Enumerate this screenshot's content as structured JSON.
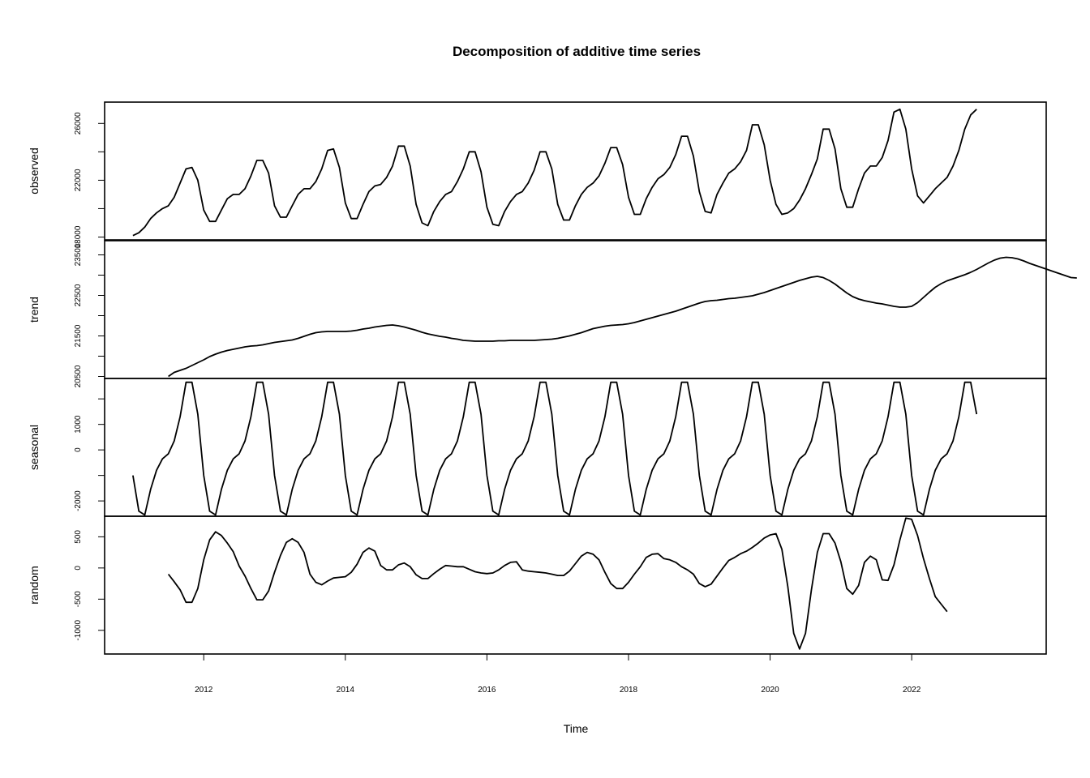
{
  "chart_data": {
    "type": "line",
    "title": "Decomposition of additive time series",
    "xlabel": "Time",
    "x_ticks": [
      "2012",
      "2014",
      "2016",
      "2018",
      "2020",
      "2022"
    ],
    "x_tick_values": [
      2012,
      2014,
      2016,
      2018,
      2020,
      2022
    ],
    "xlim": [
      2010.6,
      2023.9
    ],
    "start": 2011.0,
    "frequency": 12,
    "panels": [
      {
        "name": "observed",
        "ylabel": "observed",
        "ylim": [
          17800,
          27500
        ],
        "y_ticks": [
          18000,
          22000,
          26000
        ],
        "y_tick_labels": [
          "18000",
          "22000",
          "26000"
        ],
        "minor_ticks": [
          20000,
          24000
        ],
        "start": 2011.0,
        "values": [
          18100,
          18300,
          18700,
          19300,
          19700,
          20000,
          20200,
          20800,
          21800,
          22800,
          22900,
          22000,
          19900,
          19100,
          19100,
          19900,
          20700,
          21000,
          21000,
          21400,
          22300,
          23400,
          23400,
          22500,
          20200,
          19400,
          19400,
          20200,
          21000,
          21400,
          21400,
          21900,
          22800,
          24100,
          24200,
          22900,
          20400,
          19300,
          19300,
          20300,
          21200,
          21600,
          21700,
          22200,
          23000,
          24400,
          24400,
          23000,
          20300,
          19000,
          18800,
          19800,
          20500,
          21000,
          21200,
          21900,
          22800,
          24000,
          24000,
          22600,
          20100,
          18900,
          18800,
          19800,
          20500,
          21000,
          21200,
          21800,
          22700,
          24000,
          24000,
          22800,
          20300,
          19200,
          19200,
          20200,
          21000,
          21500,
          21800,
          22300,
          23200,
          24300,
          24300,
          23100,
          20800,
          19600,
          19600,
          20700,
          21500,
          22100,
          22400,
          22900,
          23800,
          25100,
          25100,
          23700,
          21200,
          19800,
          19700,
          21000,
          21800,
          22500,
          22800,
          23300,
          24100,
          25900,
          25900,
          24500,
          22000,
          20300,
          19600,
          19700,
          20000,
          20600,
          21400,
          22400,
          23500,
          25600,
          25600,
          24200,
          21400,
          20100,
          20100,
          21400,
          22500,
          23000,
          23000,
          23600,
          24800,
          26800,
          27000,
          25600,
          22800,
          20900,
          20400,
          20900,
          21400,
          21800,
          22200,
          23000,
          24100,
          25600,
          26600,
          27000
        ]
      },
      {
        "name": "trend",
        "ylabel": "trend",
        "ylim": [
          20450,
          23850
        ],
        "y_ticks": [
          20500,
          21500,
          22500,
          23500
        ],
        "y_tick_labels": [
          "20500",
          "21500",
          "22500",
          "23500"
        ],
        "minor_ticks": [
          21000,
          22000,
          23000
        ],
        "start": 2011.5,
        "values": [
          20500,
          20600,
          20650,
          20700,
          20770,
          20840,
          20910,
          20990,
          21050,
          21100,
          21140,
          21170,
          21200,
          21230,
          21250,
          21260,
          21280,
          21310,
          21340,
          21360,
          21380,
          21400,
          21440,
          21490,
          21540,
          21580,
          21600,
          21610,
          21610,
          21610,
          21610,
          21620,
          21640,
          21670,
          21690,
          21720,
          21740,
          21760,
          21770,
          21750,
          21720,
          21680,
          21640,
          21590,
          21550,
          21520,
          21490,
          21470,
          21440,
          21420,
          21390,
          21380,
          21370,
          21370,
          21370,
          21370,
          21380,
          21380,
          21390,
          21390,
          21390,
          21390,
          21390,
          21400,
          21410,
          21420,
          21440,
          21470,
          21500,
          21540,
          21580,
          21630,
          21680,
          21710,
          21740,
          21760,
          21770,
          21780,
          21800,
          21830,
          21870,
          21910,
          21950,
          21990,
          22030,
          22070,
          22110,
          22160,
          22210,
          22260,
          22310,
          22350,
          22370,
          22380,
          22400,
          22420,
          22430,
          22450,
          22470,
          22490,
          22530,
          22570,
          22620,
          22670,
          22720,
          22770,
          22820,
          22870,
          22910,
          22950,
          22970,
          22940,
          22870,
          22780,
          22670,
          22560,
          22470,
          22410,
          22370,
          22340,
          22310,
          22290,
          22260,
          22230,
          22210,
          22210,
          22230,
          22320,
          22450,
          22580,
          22700,
          22790,
          22860,
          22910,
          22960,
          23010,
          23070,
          23140,
          23220,
          23300,
          23370,
          23420,
          23440,
          23430,
          23400,
          23350,
          23290,
          23240,
          23190,
          23140,
          23090,
          23040,
          22990,
          22940,
          22930
        ]
      },
      {
        "name": "seasonal",
        "ylabel": "seasonal",
        "ylim": [
          -2600,
          2800
        ],
        "y_ticks": [
          -2000,
          0,
          1000
        ],
        "y_tick_labels": [
          "-2000",
          "0",
          "1000"
        ],
        "minor_ticks": [
          -1000,
          2000
        ],
        "start": 2011.0,
        "cycle": [
          -1000,
          -2400,
          -2550,
          -1550,
          -800,
          -350,
          -150,
          350,
          1300,
          2650,
          2650,
          1400
        ],
        "values_years": 12
      },
      {
        "name": "random",
        "ylabel": "random",
        "ylim": [
          -1380,
          830
        ],
        "y_ticks": [
          -1000,
          -500,
          0,
          500
        ],
        "y_tick_labels": [
          "-1000",
          "-500",
          "0",
          "500"
        ],
        "start": 2011.5,
        "values": [
          -100,
          -220,
          -350,
          -550,
          -550,
          -330,
          130,
          450,
          580,
          520,
          400,
          260,
          30,
          -130,
          -330,
          -510,
          -510,
          -370,
          -70,
          200,
          410,
          470,
          410,
          250,
          -100,
          -230,
          -270,
          -210,
          -160,
          -150,
          -140,
          -70,
          60,
          250,
          320,
          270,
          40,
          -30,
          -30,
          50,
          80,
          20,
          -110,
          -170,
          -170,
          -90,
          -20,
          40,
          30,
          20,
          20,
          -20,
          -60,
          -80,
          -90,
          -80,
          -30,
          40,
          90,
          100,
          -30,
          -50,
          -60,
          -70,
          -80,
          -100,
          -120,
          -120,
          -50,
          70,
          190,
          250,
          220,
          130,
          -70,
          -250,
          -330,
          -330,
          -230,
          -100,
          20,
          170,
          220,
          230,
          150,
          130,
          90,
          20,
          -30,
          -100,
          -250,
          -300,
          -260,
          -130,
          0,
          120,
          170,
          230,
          270,
          330,
          400,
          480,
          530,
          550,
          300,
          -300,
          -1050,
          -1300,
          -1050,
          -350,
          250,
          550,
          550,
          400,
          100,
          -330,
          -420,
          -280,
          90,
          190,
          130,
          -190,
          -200,
          50,
          450,
          800,
          780,
          520,
          150,
          -170,
          -460,
          -580,
          -700
        ]
      }
    ]
  }
}
